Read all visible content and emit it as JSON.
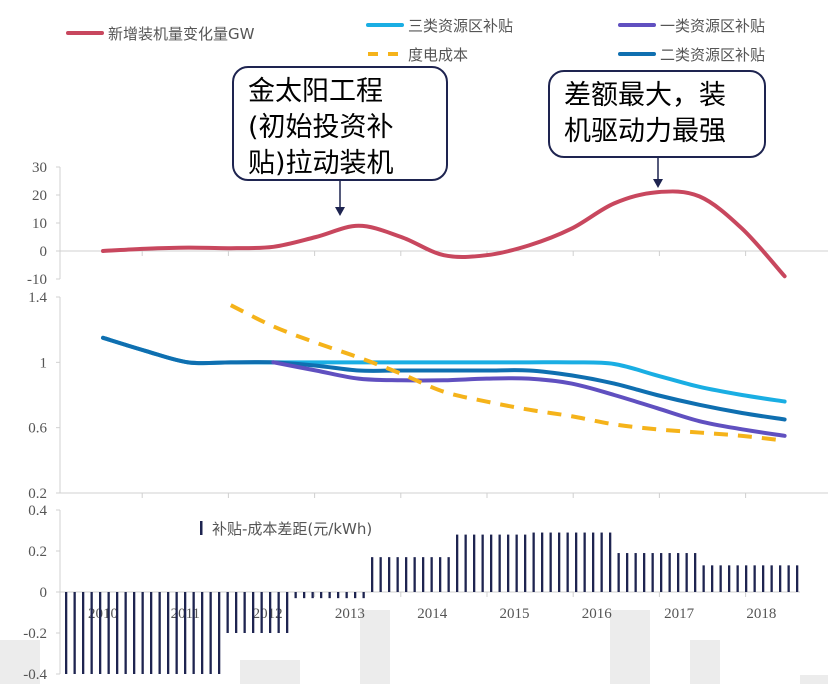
{
  "chart_data": [
    {
      "type": "line",
      "panel": "top",
      "yticks": [
        30,
        20,
        10,
        0,
        -10
      ],
      "ylim": [
        -10,
        30
      ],
      "series": [
        {
          "name": "新增装机量变化量GW",
          "color": "#c8475e",
          "style": "solid",
          "values": [
            0,
            0.8,
            1.2,
            1,
            1.5,
            5,
            9,
            5,
            -1.5,
            -1.5,
            2,
            8,
            17,
            21,
            19.5,
            8,
            -9
          ]
        }
      ]
    },
    {
      "type": "line",
      "panel": "middle",
      "yticks": [
        1.4,
        1,
        0.6,
        0.2
      ],
      "ylim": [
        0.2,
        1.4
      ],
      "series": [
        {
          "name": "三类资源区补贴",
          "color": "#1aaee3",
          "style": "solid",
          "values": [
            1.15,
            1.07,
            1.0,
            1.0,
            1.0,
            1.0,
            1.0,
            1.0,
            1.0,
            1.0,
            1.0,
            1.0,
            0.99,
            0.92,
            0.85,
            0.8,
            0.76
          ]
        },
        {
          "name": "一类资源区补贴",
          "color": "#6050c0",
          "style": "solid",
          "values": [
            null,
            null,
            null,
            null,
            1.0,
            0.95,
            0.9,
            0.89,
            0.89,
            0.9,
            0.9,
            0.87,
            0.8,
            0.72,
            0.64,
            0.59,
            0.55
          ]
        },
        {
          "name": "二类资源区补贴",
          "color": "#0f6fb0",
          "style": "solid",
          "values": [
            1.15,
            1.07,
            1.0,
            1.0,
            1.0,
            0.98,
            0.95,
            0.95,
            0.95,
            0.95,
            0.95,
            0.92,
            0.87,
            0.8,
            0.74,
            0.69,
            0.65
          ]
        },
        {
          "name": "度电成本",
          "color": "#f5b31a",
          "style": "dashed",
          "values": [
            null,
            null,
            null,
            1.35,
            1.22,
            1.12,
            1.03,
            0.93,
            0.82,
            0.76,
            0.71,
            0.67,
            0.62,
            0.59,
            0.57,
            0.55,
            0.52
          ]
        }
      ]
    },
    {
      "type": "bar",
      "panel": "bottom",
      "yticks": [
        0.4,
        0.2,
        0,
        -0.2,
        -0.4
      ],
      "ylim": [
        -0.4,
        0.4
      ],
      "categories": [
        "2010",
        "2011",
        "2012",
        "2013",
        "2014",
        "2015",
        "2016",
        "2017",
        "2018"
      ],
      "series_name": "补贴-成本差距(元/kWh)",
      "color": "#1e2450",
      "segments": [
        {
          "start": 2010.0,
          "end": 2011.9,
          "value": -0.4
        },
        {
          "start": 2011.9,
          "end": 2012.8,
          "value": -0.2
        },
        {
          "start": 2012.8,
          "end": 2013.75,
          "value": -0.03
        },
        {
          "start": 2013.75,
          "end": 2014.75,
          "value": 0.17
        },
        {
          "start": 2014.75,
          "end": 2015.75,
          "value": 0.28
        },
        {
          "start": 2015.75,
          "end": 2016.75,
          "value": 0.29
        },
        {
          "start": 2016.75,
          "end": 2017.75,
          "value": 0.19
        },
        {
          "start": 2017.75,
          "end": 2018.75,
          "value": 0.13
        }
      ]
    }
  ],
  "callouts": [
    {
      "lines": [
        "金太阳工程",
        "(初始投资补",
        "贴)拉动装机"
      ]
    },
    {
      "lines": [
        "差额最大，装",
        "机驱动力最强"
      ]
    }
  ]
}
